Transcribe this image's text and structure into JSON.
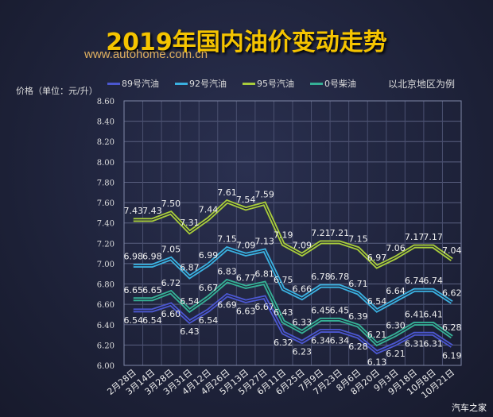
{
  "chart_data": {
    "type": "line",
    "title": "2019年国内油价变动走势",
    "subtitle": "www.autohome.com.cn",
    "ylabel": "价格（单位：元/升）",
    "note": "以北京地区为例",
    "watermark": "汽车之家",
    "ylim": [
      6.0,
      8.6
    ],
    "yticks": [
      "6.00",
      "6.20",
      "6.40",
      "6.60",
      "6.80",
      "7.00",
      "7.20",
      "7.40",
      "7.60",
      "7.80",
      "8.00",
      "8.20",
      "8.40",
      "8.60"
    ],
    "grid": true,
    "legend_position": "top",
    "categories": [
      "2月28日",
      "3月14日",
      "3月28日",
      "3月31日",
      "4月12日",
      "4月26日",
      "5月13日",
      "5月27日",
      "6月11日",
      "6月25日",
      "7月9日",
      "7月23日",
      "8月6日",
      "8月20日",
      "9月3日",
      "9月18日",
      "10月8日",
      "10月21日"
    ],
    "series": [
      {
        "name": "89号汽油",
        "color": "#4b57d0",
        "label_pos": "below",
        "values": [
          6.54,
          6.54,
          6.6,
          6.43,
          6.54,
          6.69,
          6.63,
          6.67,
          6.32,
          6.23,
          6.34,
          6.34,
          6.28,
          6.13,
          6.21,
          6.31,
          6.31,
          6.19
        ]
      },
      {
        "name": "92号汽油",
        "color": "#3ab0e0",
        "label_pos": "above",
        "values": [
          6.98,
          6.98,
          7.05,
          6.87,
          6.99,
          7.15,
          7.09,
          7.13,
          6.75,
          6.66,
          6.78,
          6.78,
          6.71,
          6.54,
          6.64,
          6.74,
          6.74,
          6.62
        ]
      },
      {
        "name": "95号汽油",
        "color": "#a8cc3c",
        "label_pos": "above",
        "values": [
          7.43,
          7.43,
          7.5,
          7.31,
          7.44,
          7.61,
          7.54,
          7.59,
          7.19,
          7.09,
          7.21,
          7.21,
          7.15,
          6.97,
          7.06,
          7.17,
          7.17,
          7.04
        ]
      },
      {
        "name": "0号柴油",
        "color": "#35b096",
        "label_pos": "above",
        "values": [
          6.65,
          6.65,
          6.72,
          6.54,
          6.67,
          6.83,
          6.77,
          6.81,
          6.43,
          6.33,
          6.45,
          6.45,
          6.39,
          6.21,
          6.3,
          6.41,
          6.41,
          6.28
        ]
      }
    ]
  }
}
